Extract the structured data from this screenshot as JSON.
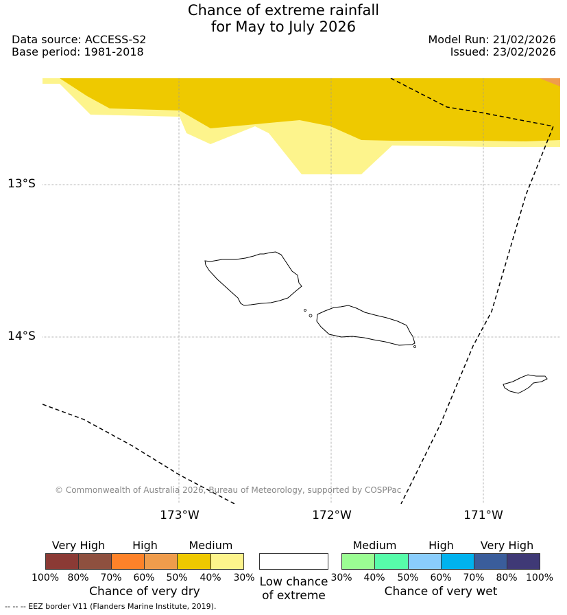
{
  "title": {
    "line1": "Chance of extreme rainfall",
    "line2": "for May to July 2026"
  },
  "meta": {
    "data_source": "Data source: ACCESS-S2",
    "base_period": "Base period: 1981-2018",
    "model_run": "Model Run: 21/02/2026",
    "issued": "Issued: 23/02/2026"
  },
  "map": {
    "lat_labels": [
      "13°S",
      "14°S"
    ],
    "lon_labels": [
      "173°W",
      "172°W",
      "171°W"
    ],
    "copyright": "© Commonwealth of Australia 2026, Bureau of Meteorology, supported by COSPPac"
  },
  "legend": {
    "dry": {
      "categories": [
        "Very High",
        "High",
        "Medium"
      ],
      "ticks": [
        "100%",
        "80%",
        "70%",
        "60%",
        "50%",
        "40%",
        "30%"
      ],
      "caption": "Chance of very dry",
      "colors": [
        "#8b3a35",
        "#8e503f",
        "#fe8229",
        "#ef9c4c",
        "#eec900",
        "#fdf48c"
      ]
    },
    "neutral": {
      "caption_line1": "Low chance",
      "caption_line2": "of extreme",
      "color": "#ffffff"
    },
    "wet": {
      "categories": [
        "Medium",
        "High",
        "Very High"
      ],
      "ticks": [
        "30%",
        "40%",
        "50%",
        "60%",
        "70%",
        "80%",
        "100%"
      ],
      "caption": "Chance of very wet",
      "colors": [
        "#9bfd93",
        "#57fcaa",
        "#8acdfc",
        "#00b2ee",
        "#3a5d9b",
        "#3f3976"
      ]
    }
  },
  "footnote": "--  --  -- EEZ border V11 (Flanders Marine Institute, 2019)."
}
